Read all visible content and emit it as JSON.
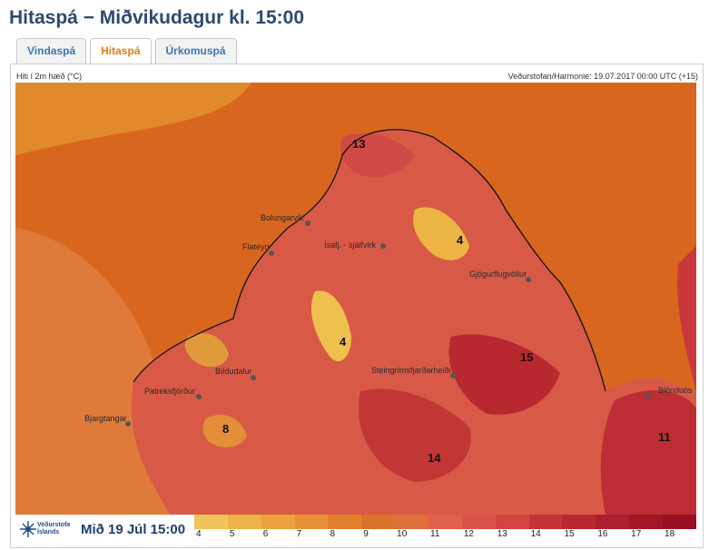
{
  "header": {
    "title": "Hitaspá − Miðvikudagur kl. 15:00"
  },
  "tabs": [
    {
      "label": "Vindaspá",
      "active": false
    },
    {
      "label": "Hitaspá",
      "active": true
    },
    {
      "label": "Úrkomuspá",
      "active": false
    }
  ],
  "map": {
    "parameter_label": "Hiti í 2m hæð (°C)",
    "source_label": "Veðurstofan/Harmonie: 19.07.2017 00:00 UTC (+15)",
    "places": [
      "Bolungarvík",
      "Flateyri",
      "Ísafj. - sjálfvirk",
      "Gjögurflugvöllur",
      "Bíldudalur",
      "Patreksfjörður",
      "Bjargtangar",
      "Steingrímsfjarðarheiði",
      "Blönduós"
    ],
    "values": [
      "13",
      "4",
      "4",
      "15",
      "8",
      "14",
      "11"
    ]
  },
  "footer": {
    "logo_text": "Veðurstofa Íslands",
    "date_label": "Mið 19 Júl 15:00"
  },
  "legend": {
    "ticks": [
      "4",
      "5",
      "6",
      "7",
      "8",
      "9",
      "10",
      "11",
      "12",
      "13",
      "14",
      "15",
      "16",
      "17",
      "18"
    ],
    "colors": [
      "#f0c45a",
      "#eeb34a",
      "#eba23f",
      "#e89134",
      "#e0802c",
      "#d9722a",
      "#df6f3a",
      "#e0604a",
      "#d9534a",
      "#d04441",
      "#c43436",
      "#b8292f",
      "#ad1f2a",
      "#a31626",
      "#970f22"
    ]
  },
  "colors": {
    "title": "#2c4a6e",
    "tab_active": "#e07d16",
    "tab_link": "#3a78b4"
  }
}
